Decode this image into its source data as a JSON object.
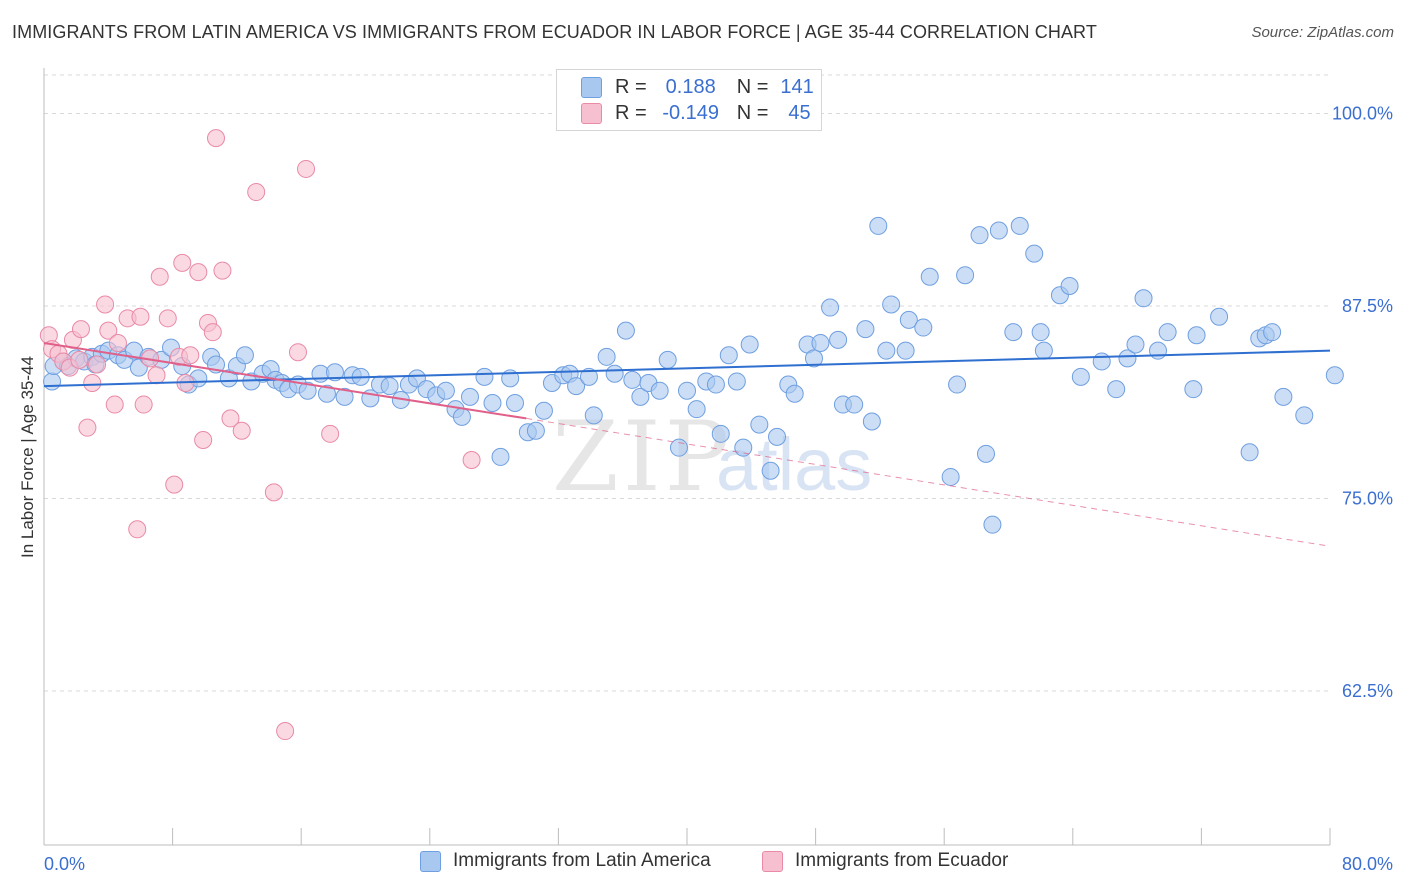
{
  "title": "IMMIGRANTS FROM LATIN AMERICA VS IMMIGRANTS FROM ECUADOR IN LABOR FORCE | AGE 35-44 CORRELATION CHART",
  "source": "Source: ZipAtlas.com",
  "watermark": {
    "zip": "ZIP",
    "atlas": "atlas"
  },
  "legend_top": [
    {
      "r_label": "R =",
      "r_value": "0.188",
      "n_label": "N =",
      "n_value": "141"
    },
    {
      "r_label": "R =",
      "r_value": "-0.149",
      "n_label": "N =",
      "n_value": "45"
    }
  ],
  "colors": {
    "blue_fill": "#a9c8f0",
    "blue_stroke": "#6f9fe0",
    "blue_line": "#2f6fd0",
    "pink_fill": "#f7c0d0",
    "pink_stroke": "#e98aa6",
    "pink_line": "#e0608a",
    "axis_label": "#3a6fd0",
    "grid": "#d9d9d9"
  },
  "chart_data": {
    "type": "scatter",
    "title": "IMMIGRANTS FROM LATIN AMERICA VS IMMIGRANTS FROM ECUADOR IN LABOR FORCE | AGE 35-44 CORRELATION CHART",
    "xlabel": "",
    "ylabel": "In Labor Force | Age 35-44",
    "xlim": [
      0,
      80
    ],
    "ylim": [
      52.5,
      102.5
    ],
    "x_tick_labels": [
      "0.0%",
      "80.0%"
    ],
    "y_ticks": [
      62.5,
      75.0,
      87.5,
      100.0
    ],
    "y_tick_labels": [
      "62.5%",
      "75.0%",
      "87.5%",
      "100.0%"
    ],
    "grid": "horizontal dashed",
    "legend_position": "bottom",
    "series": [
      {
        "name": "Immigrants from Latin America",
        "R": 0.188,
        "N": 141,
        "trend": {
          "x": [
            0,
            80
          ],
          "y": [
            82.3,
            84.6
          ]
        },
        "points": [
          [
            0.5,
            82.6
          ],
          [
            0.6,
            83.6
          ],
          [
            1.2,
            83.9
          ],
          [
            1.5,
            83.6
          ],
          [
            2.0,
            84.1
          ],
          [
            2.5,
            83.9
          ],
          [
            3.0,
            84.2
          ],
          [
            3.2,
            83.7
          ],
          [
            3.6,
            84.4
          ],
          [
            4.0,
            84.6
          ],
          [
            4.6,
            84.3
          ],
          [
            5.0,
            84.0
          ],
          [
            5.6,
            84.6
          ],
          [
            5.9,
            83.5
          ],
          [
            6.5,
            84.2
          ],
          [
            7.3,
            84.0
          ],
          [
            7.9,
            84.8
          ],
          [
            8.6,
            83.6
          ],
          [
            9.0,
            82.4
          ],
          [
            9.6,
            82.8
          ],
          [
            10.4,
            84.2
          ],
          [
            10.7,
            83.7
          ],
          [
            11.5,
            82.8
          ],
          [
            12.0,
            83.6
          ],
          [
            12.5,
            84.3
          ],
          [
            12.9,
            82.6
          ],
          [
            13.6,
            83.1
          ],
          [
            14.1,
            83.4
          ],
          [
            14.4,
            82.7
          ],
          [
            14.8,
            82.5
          ],
          [
            15.2,
            82.1
          ],
          [
            15.8,
            82.4
          ],
          [
            16.4,
            82.0
          ],
          [
            17.2,
            83.1
          ],
          [
            17.6,
            81.8
          ],
          [
            18.1,
            83.2
          ],
          [
            18.7,
            81.6
          ],
          [
            19.2,
            83.0
          ],
          [
            19.7,
            82.9
          ],
          [
            20.3,
            81.5
          ],
          [
            20.9,
            82.4
          ],
          [
            21.5,
            82.3
          ],
          [
            22.2,
            81.4
          ],
          [
            22.7,
            82.4
          ],
          [
            23.2,
            82.8
          ],
          [
            23.8,
            82.1
          ],
          [
            24.4,
            81.7
          ],
          [
            25.0,
            82.0
          ],
          [
            25.6,
            80.8
          ],
          [
            26.0,
            80.3
          ],
          [
            26.5,
            81.6
          ],
          [
            27.4,
            82.9
          ],
          [
            27.9,
            81.2
          ],
          [
            28.4,
            77.7
          ],
          [
            29.0,
            82.8
          ],
          [
            29.3,
            81.2
          ],
          [
            30.1,
            79.3
          ],
          [
            30.6,
            79.4
          ],
          [
            31.1,
            80.7
          ],
          [
            31.6,
            82.5
          ],
          [
            32.3,
            83.0
          ],
          [
            32.7,
            83.1
          ],
          [
            33.1,
            82.3
          ],
          [
            33.9,
            82.9
          ],
          [
            34.2,
            80.4
          ],
          [
            35.0,
            84.2
          ],
          [
            35.5,
            83.1
          ],
          [
            36.2,
            85.9
          ],
          [
            36.6,
            82.7
          ],
          [
            37.1,
            81.6
          ],
          [
            37.6,
            82.5
          ],
          [
            38.3,
            82.0
          ],
          [
            38.8,
            84.0
          ],
          [
            39.5,
            78.3
          ],
          [
            40.0,
            82.0
          ],
          [
            40.6,
            80.8
          ],
          [
            41.2,
            82.6
          ],
          [
            41.8,
            82.4
          ],
          [
            42.1,
            79.2
          ],
          [
            42.6,
            84.3
          ],
          [
            43.1,
            82.6
          ],
          [
            43.5,
            78.3
          ],
          [
            43.9,
            85.0
          ],
          [
            44.5,
            79.8
          ],
          [
            45.2,
            76.8
          ],
          [
            45.6,
            79.0
          ],
          [
            46.3,
            82.4
          ],
          [
            46.7,
            81.8
          ],
          [
            47.5,
            85.0
          ],
          [
            47.9,
            84.1
          ],
          [
            48.3,
            85.1
          ],
          [
            48.9,
            87.4
          ],
          [
            49.4,
            85.3
          ],
          [
            49.7,
            81.1
          ],
          [
            50.4,
            81.1
          ],
          [
            51.1,
            86.0
          ],
          [
            51.5,
            80.0
          ],
          [
            51.9,
            92.7
          ],
          [
            52.4,
            84.6
          ],
          [
            52.7,
            87.6
          ],
          [
            53.6,
            84.6
          ],
          [
            53.8,
            86.6
          ],
          [
            54.7,
            86.1
          ],
          [
            55.1,
            89.4
          ],
          [
            56.4,
            76.4
          ],
          [
            56.8,
            82.4
          ],
          [
            57.3,
            89.5
          ],
          [
            58.2,
            92.1
          ],
          [
            58.6,
            77.9
          ],
          [
            59.0,
            73.3
          ],
          [
            59.4,
            92.4
          ],
          [
            60.3,
            85.8
          ],
          [
            60.7,
            92.7
          ],
          [
            61.6,
            90.9
          ],
          [
            62.2,
            84.6
          ],
          [
            62.0,
            85.8
          ],
          [
            63.2,
            88.2
          ],
          [
            63.8,
            88.8
          ],
          [
            64.5,
            82.9
          ],
          [
            65.8,
            83.9
          ],
          [
            66.7,
            82.1
          ],
          [
            67.4,
            84.1
          ],
          [
            67.9,
            85.0
          ],
          [
            68.4,
            88.0
          ],
          [
            69.3,
            84.6
          ],
          [
            69.9,
            85.8
          ],
          [
            71.5,
            82.1
          ],
          [
            71.7,
            85.6
          ],
          [
            73.1,
            86.8
          ],
          [
            75.0,
            78.0
          ],
          [
            75.6,
            85.4
          ],
          [
            76.0,
            85.6
          ],
          [
            76.4,
            85.8
          ],
          [
            77.1,
            81.6
          ],
          [
            78.4,
            80.4
          ],
          [
            80.3,
            83.0
          ]
        ]
      },
      {
        "name": "Immigrants from Ecuador",
        "R": -0.149,
        "N": 45,
        "trend": {
          "x": [
            0,
            30
          ],
          "y": [
            85.1,
            80.2
          ]
        },
        "trend_dashed": {
          "x": [
            30,
            80
          ],
          "y": [
            80.2,
            71.9
          ]
        },
        "points": [
          [
            0.3,
            85.6
          ],
          [
            0.5,
            84.7
          ],
          [
            0.9,
            84.4
          ],
          [
            1.2,
            83.9
          ],
          [
            1.6,
            83.5
          ],
          [
            1.8,
            85.3
          ],
          [
            2.2,
            84.0
          ],
          [
            2.3,
            86.0
          ],
          [
            2.7,
            79.6
          ],
          [
            3.0,
            82.5
          ],
          [
            3.3,
            83.7
          ],
          [
            3.8,
            87.6
          ],
          [
            4.0,
            85.9
          ],
          [
            4.4,
            81.1
          ],
          [
            4.6,
            85.1
          ],
          [
            5.2,
            86.7
          ],
          [
            5.8,
            73.0
          ],
          [
            6.0,
            86.8
          ],
          [
            6.2,
            81.1
          ],
          [
            6.6,
            84.1
          ],
          [
            7.0,
            83.0
          ],
          [
            7.2,
            89.4
          ],
          [
            7.7,
            86.7
          ],
          [
            8.1,
            75.9
          ],
          [
            8.4,
            84.2
          ],
          [
            8.6,
            90.3
          ],
          [
            8.8,
            82.5
          ],
          [
            9.1,
            84.3
          ],
          [
            9.6,
            89.7
          ],
          [
            9.9,
            78.8
          ],
          [
            10.2,
            86.4
          ],
          [
            10.5,
            85.8
          ],
          [
            10.7,
            98.4
          ],
          [
            11.1,
            89.8
          ],
          [
            11.6,
            80.2
          ],
          [
            12.3,
            79.4
          ],
          [
            13.2,
            94.9
          ],
          [
            14.3,
            75.4
          ],
          [
            15.0,
            59.9
          ],
          [
            15.8,
            84.5
          ],
          [
            16.3,
            96.4
          ],
          [
            17.8,
            79.2
          ],
          [
            26.6,
            77.5
          ]
        ]
      }
    ]
  }
}
